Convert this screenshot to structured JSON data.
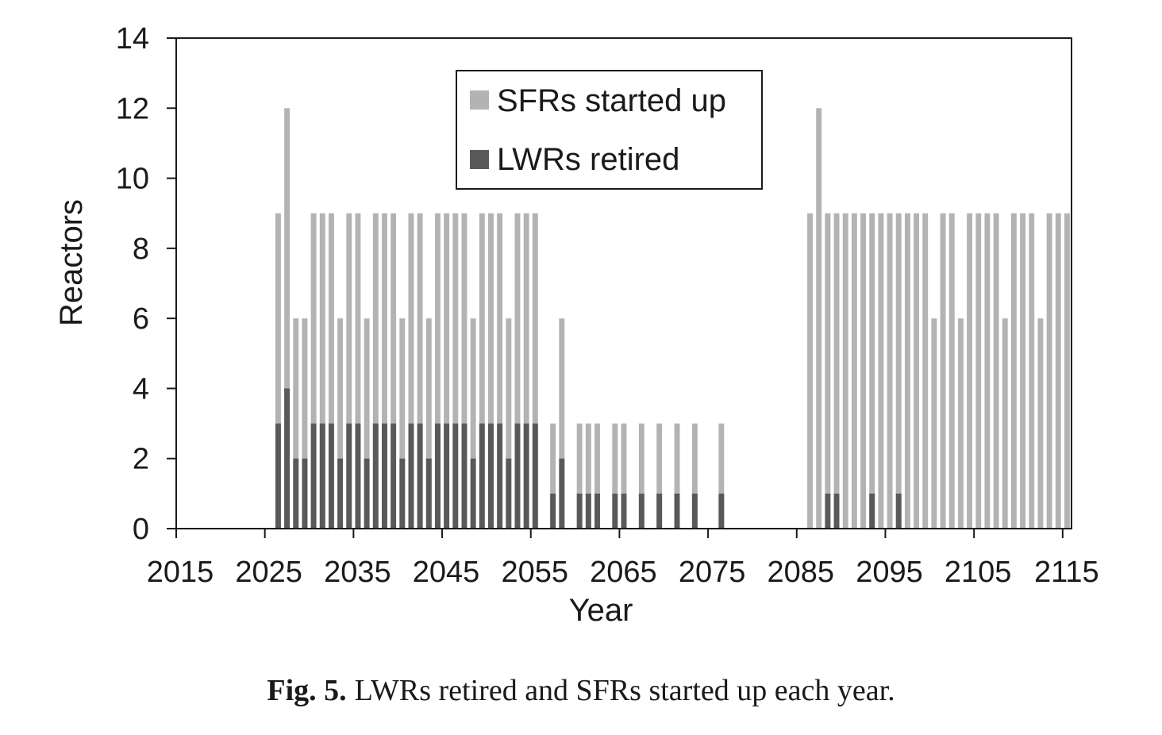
{
  "chart_data": {
    "type": "bar",
    "xlabel": "Year",
    "ylabel": "Reactors",
    "ylim": [
      0,
      14
    ],
    "yticks": [
      0,
      2,
      4,
      6,
      8,
      10,
      12,
      14
    ],
    "xlim": [
      2015,
      2116
    ],
    "xticks": [
      2015,
      2025,
      2035,
      2045,
      2055,
      2065,
      2075,
      2085,
      2095,
      2105,
      2115
    ],
    "legend": "top-center",
    "grid": false,
    "series": [
      {
        "name": "SFRs started up",
        "color": "#b3b3b3",
        "points": [
          [
            2026,
            9
          ],
          [
            2027,
            12
          ],
          [
            2028,
            6
          ],
          [
            2029,
            6
          ],
          [
            2030,
            9
          ],
          [
            2031,
            9
          ],
          [
            2032,
            9
          ],
          [
            2033,
            6
          ],
          [
            2034,
            9
          ],
          [
            2035,
            9
          ],
          [
            2036,
            6
          ],
          [
            2037,
            9
          ],
          [
            2038,
            9
          ],
          [
            2039,
            9
          ],
          [
            2040,
            6
          ],
          [
            2041,
            9
          ],
          [
            2042,
            9
          ],
          [
            2043,
            6
          ],
          [
            2044,
            9
          ],
          [
            2045,
            9
          ],
          [
            2046,
            9
          ],
          [
            2047,
            9
          ],
          [
            2048,
            6
          ],
          [
            2049,
            9
          ],
          [
            2050,
            9
          ],
          [
            2051,
            9
          ],
          [
            2052,
            6
          ],
          [
            2053,
            9
          ],
          [
            2054,
            9
          ],
          [
            2055,
            9
          ],
          [
            2057,
            3
          ],
          [
            2058,
            6
          ],
          [
            2060,
            3
          ],
          [
            2061,
            3
          ],
          [
            2062,
            3
          ],
          [
            2064,
            3
          ],
          [
            2065,
            3
          ],
          [
            2067,
            3
          ],
          [
            2069,
            3
          ],
          [
            2071,
            3
          ],
          [
            2073,
            3
          ],
          [
            2076,
            3
          ],
          [
            2086,
            9
          ],
          [
            2087,
            12
          ],
          [
            2088,
            9
          ],
          [
            2089,
            9
          ],
          [
            2090,
            9
          ],
          [
            2091,
            9
          ],
          [
            2092,
            9
          ],
          [
            2093,
            9
          ],
          [
            2094,
            9
          ],
          [
            2095,
            9
          ],
          [
            2096,
            9
          ],
          [
            2097,
            9
          ],
          [
            2098,
            9
          ],
          [
            2099,
            9
          ],
          [
            2100,
            6
          ],
          [
            2101,
            9
          ],
          [
            2102,
            9
          ],
          [
            2103,
            6
          ],
          [
            2104,
            9
          ],
          [
            2105,
            9
          ],
          [
            2106,
            9
          ],
          [
            2107,
            9
          ],
          [
            2108,
            6
          ],
          [
            2109,
            9
          ],
          [
            2110,
            9
          ],
          [
            2111,
            9
          ],
          [
            2112,
            6
          ],
          [
            2113,
            9
          ],
          [
            2114,
            9
          ],
          [
            2115,
            9
          ]
        ]
      },
      {
        "name": "LWRs retired",
        "color": "#595959",
        "points": [
          [
            2026,
            3
          ],
          [
            2027,
            4
          ],
          [
            2028,
            2
          ],
          [
            2029,
            2
          ],
          [
            2030,
            3
          ],
          [
            2031,
            3
          ],
          [
            2032,
            3
          ],
          [
            2033,
            2
          ],
          [
            2034,
            3
          ],
          [
            2035,
            3
          ],
          [
            2036,
            2
          ],
          [
            2037,
            3
          ],
          [
            2038,
            3
          ],
          [
            2039,
            3
          ],
          [
            2040,
            2
          ],
          [
            2041,
            3
          ],
          [
            2042,
            3
          ],
          [
            2043,
            2
          ],
          [
            2044,
            3
          ],
          [
            2045,
            3
          ],
          [
            2046,
            3
          ],
          [
            2047,
            3
          ],
          [
            2048,
            2
          ],
          [
            2049,
            3
          ],
          [
            2050,
            3
          ],
          [
            2051,
            3
          ],
          [
            2052,
            2
          ],
          [
            2053,
            3
          ],
          [
            2054,
            3
          ],
          [
            2055,
            3
          ],
          [
            2057,
            1
          ],
          [
            2058,
            2
          ],
          [
            2060,
            1
          ],
          [
            2061,
            1
          ],
          [
            2062,
            1
          ],
          [
            2064,
            1
          ],
          [
            2065,
            1
          ],
          [
            2067,
            1
          ],
          [
            2069,
            1
          ],
          [
            2071,
            1
          ],
          [
            2073,
            1
          ],
          [
            2076,
            1
          ],
          [
            2088,
            1
          ],
          [
            2089,
            1
          ],
          [
            2093,
            1
          ],
          [
            2096,
            1
          ]
        ]
      }
    ]
  },
  "caption": {
    "label": "Fig. 5.",
    "text": "LWRs retired and SFRs started up each year."
  }
}
